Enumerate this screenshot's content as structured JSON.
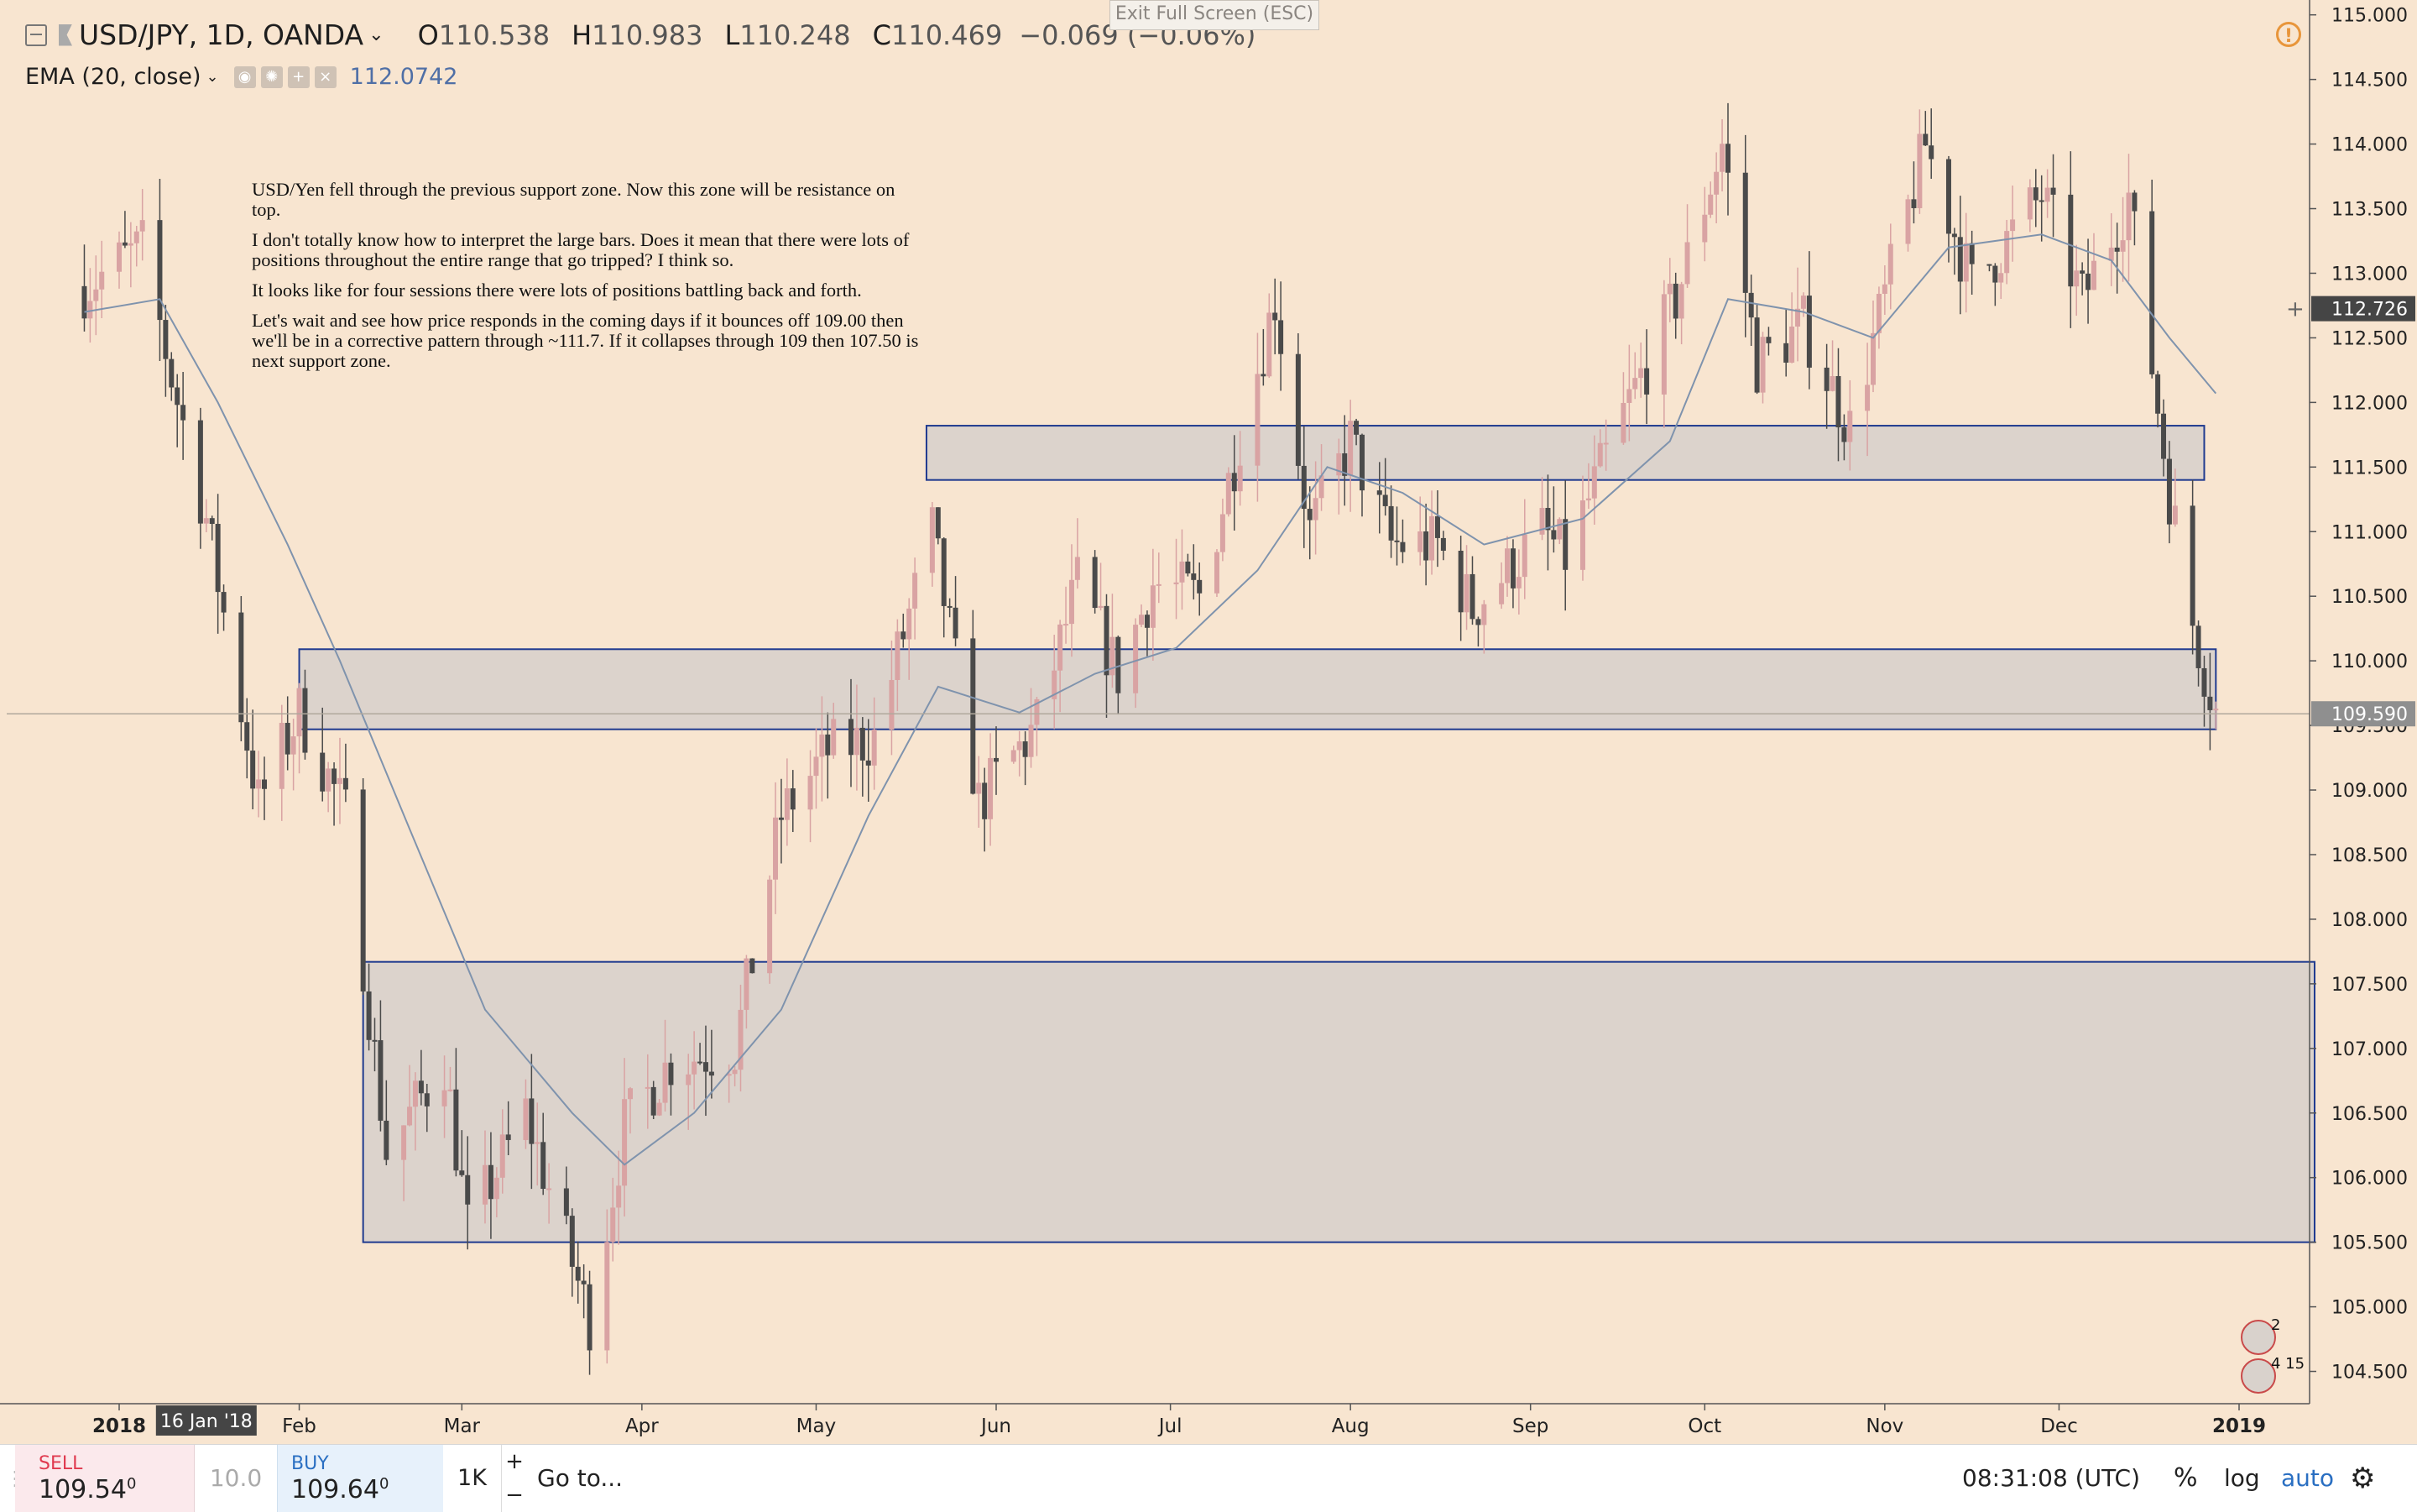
{
  "window": {
    "exit_fullscreen": "Exit Full Screen (ESC)"
  },
  "legend": {
    "symbol": "USD/JPY, 1D, OANDA",
    "ohlc": [
      {
        "k": "O",
        "v": "110.538"
      },
      {
        "k": "H",
        "v": "110.983"
      },
      {
        "k": "L",
        "v": "110.248"
      },
      {
        "k": "C",
        "v": "110.469"
      }
    ],
    "change": "−0.069 (−0.06%)",
    "indicator": "EMA (20, close)",
    "indicator_value": "112.0742",
    "alert_icon": "!"
  },
  "annotation": [
    "USD/Yen fell through the previous support zone. Now this zone will be resistance on top.",
    "I don't totally know how to interpret the large bars. Does it mean that there were lots of positions throughout the entire range that go tripped?  I think so.",
    "It looks like for four sessions there were lots of positions battling back and forth.",
    "Let's wait and see how price responds in the coming days if it bounces off 109.00 then we'll be in a corrective pattern through ~111.7. If it collapses through 109 then 107.50 is next support zone."
  ],
  "events": [
    {
      "count": "2"
    },
    {
      "count": "4 15"
    }
  ],
  "colors": {
    "background": "#f8e5d0",
    "up_candle": "#d9a3a3",
    "down_candle": "#4a4a4a",
    "ema_line": "#7f93ad",
    "zone_fill": "#dcd3cc",
    "zone_border": "#1f3a8f",
    "crosshair_label": "#454545",
    "last_price_label": "#8f8f8f"
  },
  "chart_data": {
    "type": "candlestick",
    "y_axis": {
      "min": 104.25,
      "max": 115.05,
      "ticks": [
        "115.000",
        "114.500",
        "114.000",
        "113.500",
        "113.000",
        "112.500",
        "112.000",
        "111.500",
        "111.000",
        "110.500",
        "110.000",
        "109.500",
        "109.000",
        "108.500",
        "108.000",
        "107.500",
        "107.000",
        "106.500",
        "106.000",
        "105.500",
        "105.000",
        "104.500"
      ],
      "crosshair_label": "112.726",
      "last_price_label": "109.590"
    },
    "x_axis": {
      "labels": [
        {
          "text": "2018",
          "date": "2018-01-01"
        },
        {
          "text": "Feb",
          "date": "2018-02-01"
        },
        {
          "text": "Mar",
          "date": "2018-03-01"
        },
        {
          "text": "Apr",
          "date": "2018-04-01"
        },
        {
          "text": "May",
          "date": "2018-05-01"
        },
        {
          "text": "Jun",
          "date": "2018-06-01"
        },
        {
          "text": "Jul",
          "date": "2018-07-01"
        },
        {
          "text": "Aug",
          "date": "2018-08-01"
        },
        {
          "text": "Sep",
          "date": "2018-09-01"
        },
        {
          "text": "Oct",
          "date": "2018-10-01"
        },
        {
          "text": "Nov",
          "date": "2018-11-01"
        },
        {
          "text": "Dec",
          "date": "2018-12-01"
        },
        {
          "text": "2019",
          "date": "2019-01-01"
        }
      ],
      "crosshair_label": "16 Jan '18",
      "crosshair_date": "2018-01-16"
    },
    "price_path": [
      [
        "2017-12-26",
        112.9
      ],
      [
        "2018-01-05",
        113.2
      ],
      [
        "2018-01-10",
        112.2
      ],
      [
        "2018-01-16",
        111.1
      ],
      [
        "2018-01-25",
        108.9
      ],
      [
        "2018-02-01",
        109.6
      ],
      [
        "2018-02-09",
        108.8
      ],
      [
        "2018-02-16",
        106.2
      ],
      [
        "2018-02-26",
        106.9
      ],
      [
        "2018-03-02",
        105.6
      ],
      [
        "2018-03-12",
        106.5
      ],
      [
        "2018-03-23",
        104.9
      ],
      [
        "2018-03-29",
        106.4
      ],
      [
        "2018-04-06",
        106.9
      ],
      [
        "2018-04-17",
        107.0
      ],
      [
        "2018-04-25",
        108.8
      ],
      [
        "2018-05-03",
        109.3
      ],
      [
        "2018-05-11",
        109.4
      ],
      [
        "2018-05-21",
        111.0
      ],
      [
        "2018-05-29",
        108.9
      ],
      [
        "2018-06-08",
        109.5
      ],
      [
        "2018-06-15",
        110.6
      ],
      [
        "2018-06-22",
        109.9
      ],
      [
        "2018-06-28",
        110.6
      ],
      [
        "2018-07-06",
        110.5
      ],
      [
        "2018-07-19",
        112.8
      ],
      [
        "2018-07-25",
        111.0
      ],
      [
        "2018-08-01",
        111.7
      ],
      [
        "2018-08-08",
        110.9
      ],
      [
        "2018-08-16",
        110.9
      ],
      [
        "2018-08-22",
        110.4
      ],
      [
        "2018-09-03",
        111.0
      ],
      [
        "2018-09-07",
        110.8
      ],
      [
        "2018-09-17",
        111.9
      ],
      [
        "2018-09-26",
        112.8
      ],
      [
        "2018-10-04",
        114.0
      ],
      [
        "2018-10-10",
        112.3
      ],
      [
        "2018-10-18",
        112.6
      ],
      [
        "2018-10-26",
        111.8
      ],
      [
        "2018-11-08",
        114.0
      ],
      [
        "2018-11-16",
        112.9
      ],
      [
        "2018-11-28",
        113.6
      ],
      [
        "2018-12-05",
        112.8
      ],
      [
        "2018-12-13",
        113.6
      ],
      [
        "2018-12-20",
        111.3
      ],
      [
        "2018-12-24",
        110.3
      ],
      [
        "2018-12-28",
        109.6
      ]
    ],
    "ema_path": [
      [
        "2017-12-26",
        112.7
      ],
      [
        "2018-01-08",
        112.8
      ],
      [
        "2018-01-18",
        112.0
      ],
      [
        "2018-01-30",
        110.9
      ],
      [
        "2018-02-08",
        110.0
      ],
      [
        "2018-02-20",
        108.7
      ],
      [
        "2018-03-05",
        107.3
      ],
      [
        "2018-03-20",
        106.5
      ],
      [
        "2018-03-29",
        106.1
      ],
      [
        "2018-04-10",
        106.5
      ],
      [
        "2018-04-25",
        107.3
      ],
      [
        "2018-05-10",
        108.8
      ],
      [
        "2018-05-22",
        109.8
      ],
      [
        "2018-06-05",
        109.6
      ],
      [
        "2018-06-18",
        109.9
      ],
      [
        "2018-07-02",
        110.1
      ],
      [
        "2018-07-16",
        110.7
      ],
      [
        "2018-07-28",
        111.5
      ],
      [
        "2018-08-10",
        111.3
      ],
      [
        "2018-08-24",
        110.9
      ],
      [
        "2018-09-10",
        111.1
      ],
      [
        "2018-09-25",
        111.7
      ],
      [
        "2018-10-05",
        112.8
      ],
      [
        "2018-10-18",
        112.7
      ],
      [
        "2018-10-30",
        112.5
      ],
      [
        "2018-11-12",
        113.2
      ],
      [
        "2018-11-28",
        113.3
      ],
      [
        "2018-12-10",
        113.1
      ],
      [
        "2018-12-20",
        112.5
      ],
      [
        "2018-12-28",
        112.07
      ]
    ],
    "zones": [
      {
        "from": "2018-05-20",
        "to": "2018-12-26",
        "low": 111.4,
        "high": 111.82
      },
      {
        "from": "2018-02-01",
        "to": "2018-12-28",
        "low": 109.47,
        "high": 110.09
      },
      {
        "from": "2018-02-12",
        "to": "2019-01-14",
        "low": 105.5,
        "high": 107.67
      }
    ],
    "grid": false
  },
  "order_bar": {
    "sell_label": "SELL",
    "sell_price": "109.54",
    "sell_sup": "0",
    "qty": "10.0",
    "buy_label": "BUY",
    "buy_price": "109.64",
    "buy_sup": "0",
    "lot": "1K",
    "plus": "+",
    "minus": "−",
    "goto": "Go to...",
    "clock": "08:31:08 (UTC)",
    "percent": "%",
    "log": "log",
    "auto": "auto",
    "gear_icon": "⚙"
  }
}
